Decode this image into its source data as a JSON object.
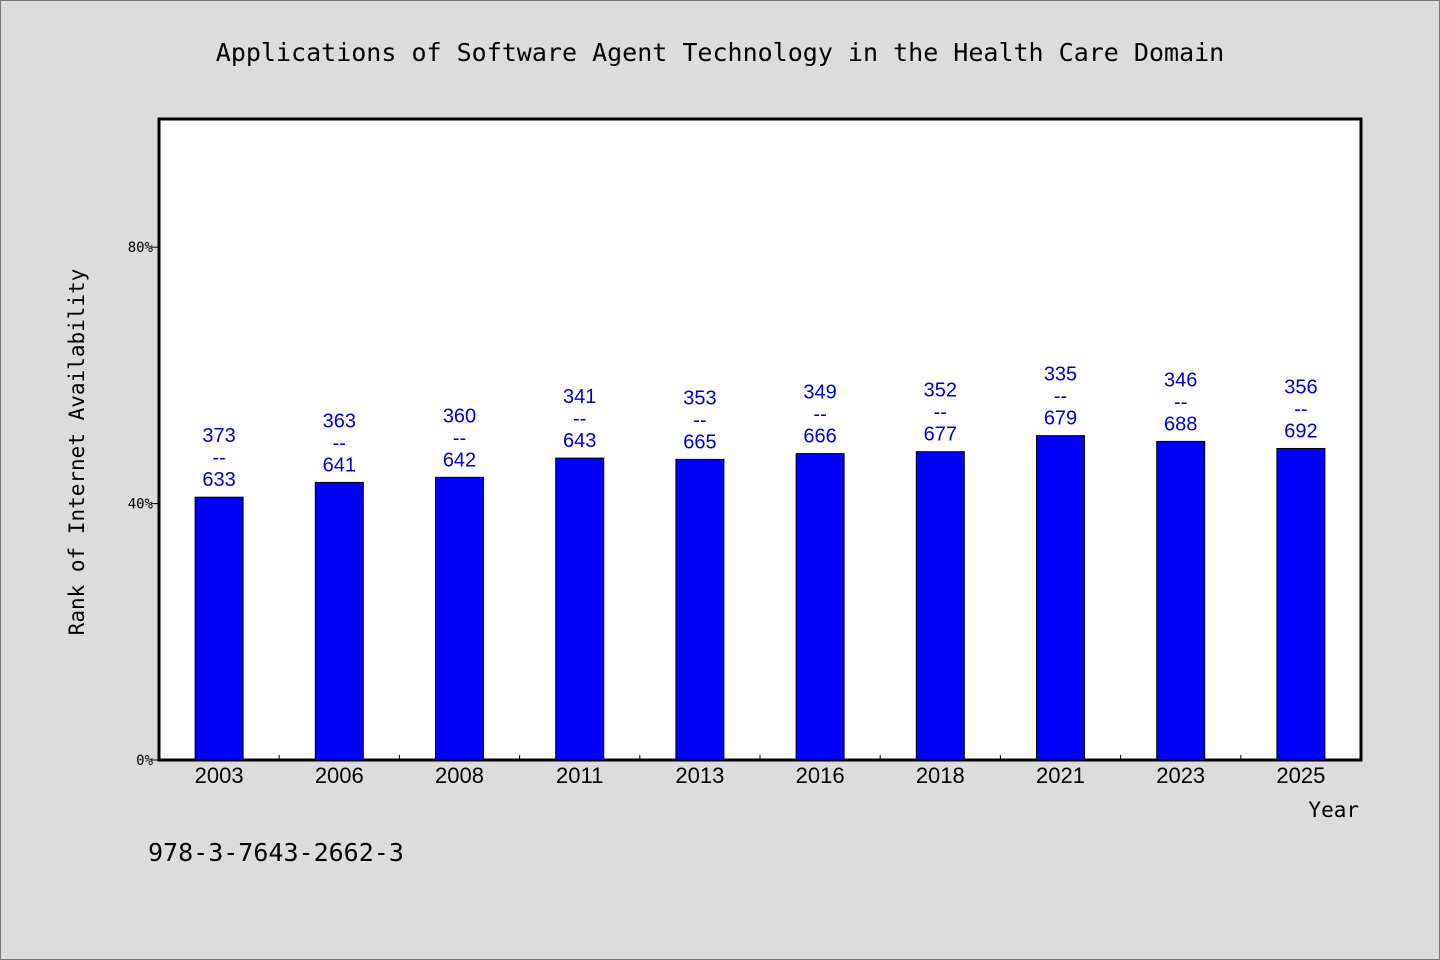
{
  "chart_data": {
    "type": "bar",
    "title": "Applications of Software Agent Technology in the Health Care Domain",
    "xlabel": "Year",
    "ylabel": "Rank of Internet Availability",
    "categories": [
      "2003",
      "2006",
      "2008",
      "2011",
      "2013",
      "2016",
      "2018",
      "2021",
      "2023",
      "2025"
    ],
    "values": [
      41,
      43.3,
      44.1,
      47.1,
      46.9,
      47.8,
      48.1,
      50.6,
      49.7,
      48.6
    ],
    "labels": [
      [
        "373",
        "--",
        "633"
      ],
      [
        "363",
        "--",
        "641"
      ],
      [
        "360",
        "--",
        "642"
      ],
      [
        "341",
        "--",
        "643"
      ],
      [
        "353",
        "--",
        "665"
      ],
      [
        "349",
        "--",
        "666"
      ],
      [
        "352",
        "--",
        "677"
      ],
      [
        "335",
        "--",
        "679"
      ],
      [
        "346",
        "--",
        "688"
      ],
      [
        "356",
        "--",
        "692"
      ]
    ],
    "yticks": [
      "0%",
      "40%",
      "80%"
    ],
    "ytick_values": [
      0,
      40,
      80
    ],
    "ylim": [
      0,
      100
    ],
    "grid": false,
    "colors": {
      "bar": "#0000ff",
      "label": "#0000cc"
    }
  },
  "footer": {
    "isbn": "978-3-7643-2662-3"
  }
}
